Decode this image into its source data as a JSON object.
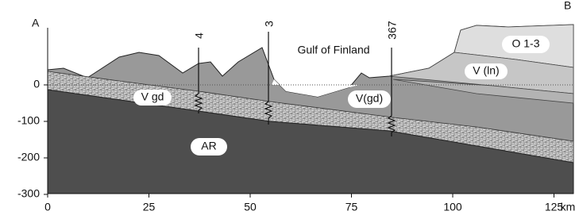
{
  "corner_labels": {
    "left": "A",
    "right": "B"
  },
  "wells": [
    {
      "label": "4"
    },
    {
      "label": "3"
    },
    {
      "label": "367"
    }
  ],
  "place": "Gulf of Finland",
  "units": [
    "V gd",
    "AR",
    "V(gd)",
    "V (ln)",
    "O 1-3"
  ],
  "axes": {
    "xticks": [
      0,
      25,
      50,
      75,
      100,
      125
    ],
    "x_unit": "km",
    "yticks": [
      0,
      -100,
      -200,
      -300
    ]
  }
}
